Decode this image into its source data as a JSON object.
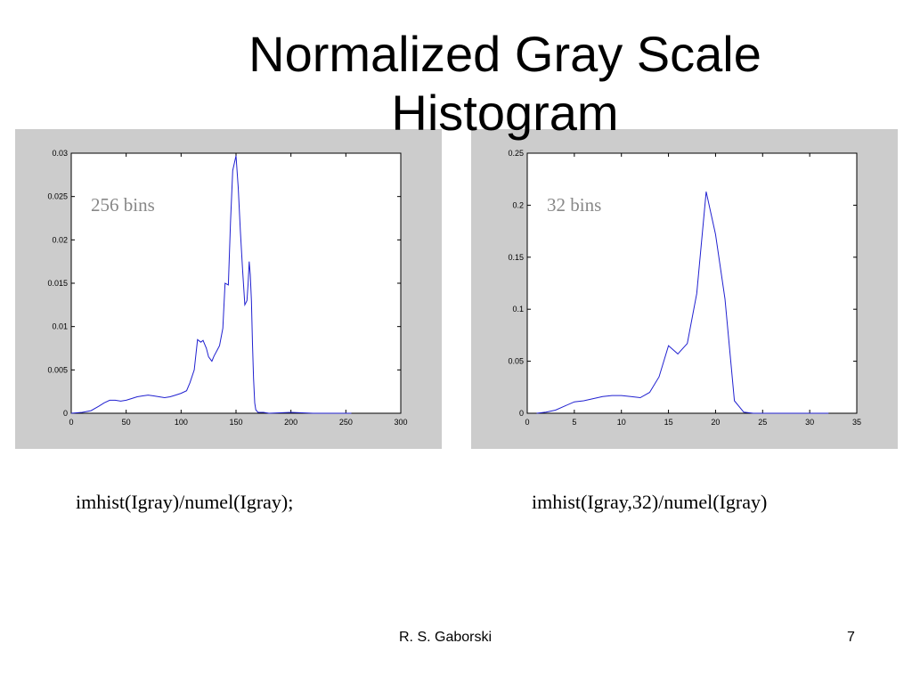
{
  "slide": {
    "title_line1": "Normalized Gray Scale",
    "title_line2": "Histogram",
    "footer_author": "R. S. Gaborski",
    "page_number": "7"
  },
  "captions": {
    "left": "imhist(Igray)/numel(Igray);",
    "right": "imhist(Igray,32)/numel(Igray)"
  },
  "colors": {
    "line": "#2020d0",
    "panel_background": "#cccccc",
    "annotation": "#888888"
  },
  "chart_data": [
    {
      "type": "line",
      "annotation": "256 bins",
      "xlim": [
        0,
        300
      ],
      "ylim": [
        0,
        0.03
      ],
      "xticks": [
        0,
        50,
        100,
        150,
        200,
        250,
        300
      ],
      "xtick_labels": [
        "0",
        "50",
        "100",
        "150",
        "200",
        "250",
        "300"
      ],
      "yticks": [
        0,
        0.005,
        0.01,
        0.015,
        0.02,
        0.025,
        0.03
      ],
      "ytick_labels": [
        "0",
        "0.005",
        "0.01",
        "0.015",
        "0.02",
        "0.025",
        "0.03"
      ],
      "series": [
        {
          "x": [
            0,
            10,
            18,
            25,
            30,
            35,
            40,
            45,
            50,
            55,
            60,
            65,
            70,
            75,
            80,
            85,
            90,
            95,
            100,
            105,
            108,
            112,
            115,
            118,
            120,
            123,
            125,
            128,
            130,
            133,
            135,
            138,
            140,
            143,
            145,
            147,
            150,
            152,
            154,
            156,
            158,
            160,
            161,
            162,
            163,
            164,
            165,
            166,
            167,
            168,
            170,
            175,
            180,
            200,
            220,
            255
          ],
          "y": [
            0,
            0.0001,
            0.0003,
            0.0008,
            0.0012,
            0.0015,
            0.0015,
            0.0014,
            0.0015,
            0.0017,
            0.0019,
            0.002,
            0.0021,
            0.002,
            0.0019,
            0.0018,
            0.0019,
            0.0021,
            0.0023,
            0.0026,
            0.0035,
            0.005,
            0.0085,
            0.0082,
            0.0084,
            0.0075,
            0.0065,
            0.006,
            0.0066,
            0.0073,
            0.0078,
            0.0098,
            0.015,
            0.0148,
            0.022,
            0.028,
            0.0297,
            0.026,
            0.021,
            0.0165,
            0.0125,
            0.013,
            0.015,
            0.0175,
            0.016,
            0.013,
            0.008,
            0.004,
            0.0012,
            0.0004,
            0.0001,
            0.0001,
            0,
            0.0001,
            0,
            0
          ]
        }
      ]
    },
    {
      "type": "line",
      "annotation": "32 bins",
      "xlim": [
        0,
        35
      ],
      "ylim": [
        0,
        0.25
      ],
      "xticks": [
        0,
        5,
        10,
        15,
        20,
        25,
        30,
        35
      ],
      "xtick_labels": [
        "0",
        "5",
        "10",
        "15",
        "20",
        "25",
        "30",
        "35"
      ],
      "yticks": [
        0,
        0.05,
        0.1,
        0.15,
        0.2,
        0.25
      ],
      "ytick_labels": [
        "0",
        "0.05",
        "0.1",
        "0.15",
        "0.2",
        "0.25"
      ],
      "series": [
        {
          "x": [
            1,
            2,
            3,
            4,
            5,
            6,
            7,
            8,
            9,
            10,
            11,
            12,
            13,
            14,
            15,
            16,
            17,
            18,
            19,
            20,
            21,
            22,
            23,
            24,
            25,
            26,
            27,
            28,
            29,
            30,
            31,
            32
          ],
          "y": [
            0,
            0.001,
            0.003,
            0.007,
            0.011,
            0.012,
            0.014,
            0.016,
            0.017,
            0.017,
            0.016,
            0.015,
            0.02,
            0.035,
            0.065,
            0.057,
            0.067,
            0.115,
            0.213,
            0.172,
            0.11,
            0.012,
            0.001,
            0,
            0,
            0,
            0,
            0,
            0,
            0,
            0,
            0
          ]
        }
      ]
    }
  ]
}
